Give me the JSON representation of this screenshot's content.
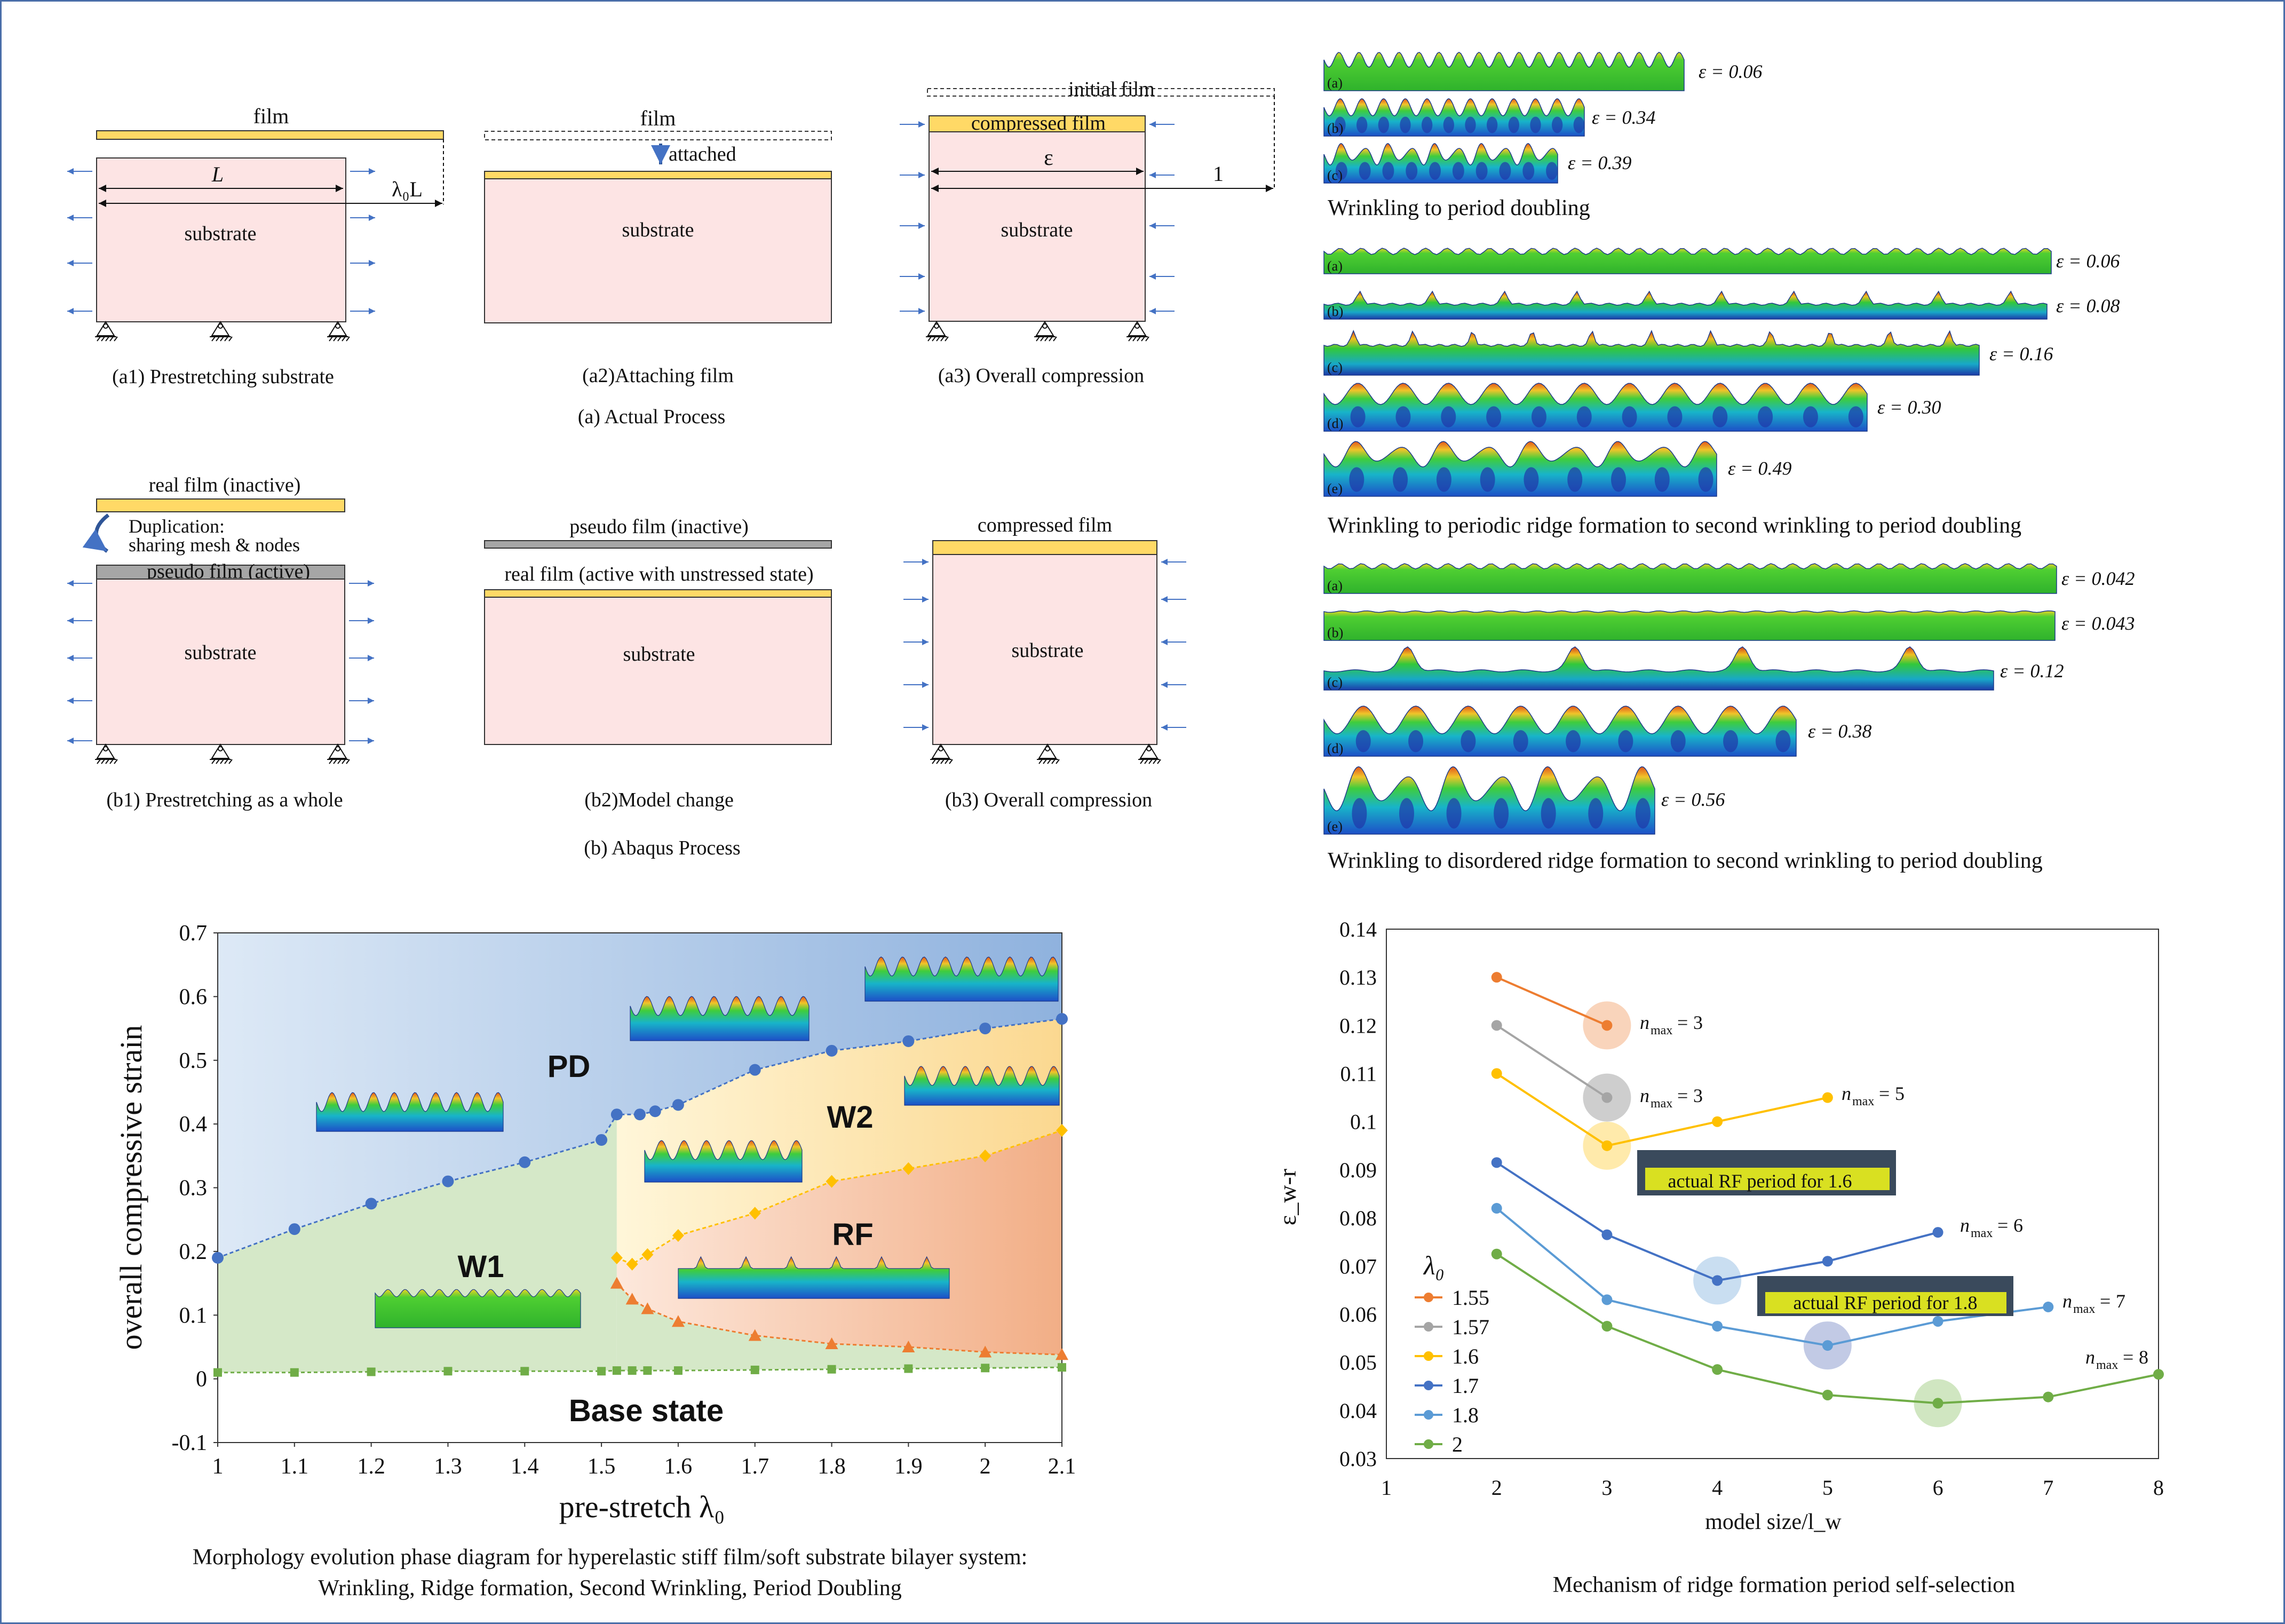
{
  "top_left": {
    "row_a": {
      "panels": [
        {
          "film": "film",
          "substrate": "substrate",
          "length": "L",
          "prestretch": "λ₀L",
          "caption": "(a1) Prestretching substrate"
        },
        {
          "film": "film",
          "attached": "attached",
          "substrate": "substrate",
          "caption": "(a2)Attaching film"
        },
        {
          "initial": "initial film",
          "compressed": "compressed film",
          "epsilon": "ε",
          "one": "1",
          "substrate": "substrate",
          "caption": "(a3) Overall compression"
        }
      ],
      "title": "(a) Actual Process"
    },
    "row_b": {
      "panels": [
        {
          "real": "real film (inactive)",
          "dup1": "Duplication:",
          "dup2": "sharing mesh & nodes",
          "pseudo": "pseudo  film (active)",
          "substrate": "substrate",
          "caption": "(b1) Prestretching as a whole"
        },
        {
          "pseudo": "pseudo  film (inactive)",
          "real": "real film (active with unstressed state)",
          "substrate": "substrate",
          "caption": "(b2)Model change"
        },
        {
          "compressed": "compressed film",
          "substrate": "substrate",
          "caption": "(b3) Overall compression"
        }
      ],
      "title": "(b) Abaqus Process"
    }
  },
  "top_right": {
    "groups": [
      {
        "title": "Wrinkling to period doubling",
        "strips": [
          {
            "label": "(a)",
            "eps": "ε = 0.06"
          },
          {
            "label": "(b)",
            "eps": "ε = 0.34"
          },
          {
            "label": "(c)",
            "eps": "ε = 0.39"
          }
        ]
      },
      {
        "title": "Wrinkling to periodic ridge formation to second wrinkling to period doubling",
        "strips": [
          {
            "label": "(a)",
            "eps": "ε = 0.06"
          },
          {
            "label": "(b)",
            "eps": "ε = 0.08"
          },
          {
            "label": "(c)",
            "eps": "ε = 0.16"
          },
          {
            "label": "(d)",
            "eps": "ε = 0.30"
          },
          {
            "label": "(e)",
            "eps": "ε = 0.49"
          }
        ]
      },
      {
        "title": "Wrinkling to disordered  ridge formation to second wrinkling to period doubling",
        "strips": [
          {
            "label": "(a)",
            "eps": "ε = 0.042"
          },
          {
            "label": "(b)",
            "eps": "ε = 0.043"
          },
          {
            "label": "(c)",
            "eps": "ε = 0.12"
          },
          {
            "label": "(d)",
            "eps": "ε = 0.38"
          },
          {
            "label": "(e)",
            "eps": "ε = 0.56"
          }
        ]
      }
    ]
  },
  "phase_diagram": {
    "caption_line1": "Morphology evolution phase diagram for hyperelastic stiff film/soft substrate bilayer system:",
    "caption_line2": "Wrinkling, Ridge formation, Second Wrinkling, Period Doubling",
    "regions": {
      "pd": "PD",
      "w2": "W2",
      "w1": "W1",
      "rf": "RF",
      "base": "Base state"
    }
  },
  "selection_chart": {
    "caption": "Mechanism of ridge formation period self-selection",
    "annotations": {
      "nmax_3a": "3",
      "nmax_3b": "3",
      "nmax_5": "5",
      "nmax_6": "6",
      "nmax_7": "7",
      "nmax_8": "8",
      "rf16": "actual RF period for 1.6",
      "rf18": "actual RF period for 1.8"
    },
    "legend_title": "λ₀"
  },
  "chart_data": [
    {
      "type": "scatter",
      "xlabel": "pre-stretch λ₀",
      "ylabel": "overall compressive strain",
      "xlim": [
        1,
        2.1
      ],
      "ylim": [
        -0.1,
        0.7
      ],
      "xticks": [
        "1",
        "1.1",
        "1.2",
        "1.3",
        "1.4",
        "1.5",
        "1.6",
        "1.7",
        "1.8",
        "1.9",
        "2",
        "2.1"
      ],
      "yticks": [
        "0.7",
        "0.6",
        "0.5",
        "0.4",
        "0.3",
        "0.2",
        "0.1",
        "0",
        "-0.1"
      ],
      "series": [
        {
          "color": "#4472c4",
          "marker": "circle",
          "x": [
            1.0,
            1.1,
            1.2,
            1.3,
            1.4,
            1.5,
            1.52,
            1.55,
            1.57,
            1.6,
            1.7,
            1.8,
            1.9,
            2.0,
            2.1
          ],
          "y": [
            0.19,
            0.235,
            0.275,
            0.31,
            0.34,
            0.375,
            0.415,
            0.415,
            0.42,
            0.43,
            0.485,
            0.515,
            0.53,
            0.55,
            0.565
          ]
        },
        {
          "color": "#ffc000",
          "marker": "diamond",
          "x": [
            1.52,
            1.54,
            1.56,
            1.6,
            1.7,
            1.8,
            1.9,
            2.0,
            2.1
          ],
          "y": [
            0.19,
            0.18,
            0.195,
            0.225,
            0.26,
            0.31,
            0.33,
            0.35,
            0.39
          ]
        },
        {
          "color": "#ed7d31",
          "marker": "triangle",
          "x": [
            1.52,
            1.54,
            1.56,
            1.6,
            1.7,
            1.8,
            1.9,
            2.0,
            2.1
          ],
          "y": [
            0.15,
            0.125,
            0.11,
            0.09,
            0.068,
            0.055,
            0.05,
            0.042,
            0.038
          ]
        },
        {
          "color": "#70ad47",
          "marker": "square",
          "x": [
            1.0,
            1.1,
            1.2,
            1.3,
            1.4,
            1.5,
            1.52,
            1.54,
            1.56,
            1.6,
            1.7,
            1.8,
            1.9,
            2.0,
            2.1
          ],
          "y": [
            0.01,
            0.01,
            0.011,
            0.012,
            0.012,
            0.012,
            0.013,
            0.013,
            0.013,
            0.013,
            0.014,
            0.015,
            0.016,
            0.017,
            0.018
          ]
        }
      ]
    },
    {
      "type": "line",
      "xlabel": "model size/l_w",
      "ylabel": "ε_w-r",
      "xlim": [
        1,
        8
      ],
      "ylim": [
        0.03,
        0.14
      ],
      "xticks": [
        "1",
        "2",
        "3",
        "4",
        "5",
        "6",
        "7",
        "8"
      ],
      "yticks": [
        "0.14",
        "0.13",
        "0.12",
        "0.11",
        "0.1",
        "0.09",
        "0.08",
        "0.07",
        "0.06",
        "0.05",
        "0.04",
        "0.03"
      ],
      "series": [
        {
          "name": "1.55",
          "color": "#ed7d31",
          "x": [
            2,
            3
          ],
          "y": [
            0.13,
            0.12
          ]
        },
        {
          "name": "1.57",
          "color": "#a5a5a5",
          "x": [
            2,
            3
          ],
          "y": [
            0.12,
            0.105
          ]
        },
        {
          "name": "1.6",
          "color": "#ffc000",
          "x": [
            2,
            3,
            4,
            5
          ],
          "y": [
            0.11,
            0.095,
            0.1,
            0.105
          ]
        },
        {
          "name": "1.7",
          "color": "#4472c4",
          "x": [
            2,
            3,
            4,
            5,
            6
          ],
          "y": [
            0.0915,
            0.0765,
            0.067,
            0.071,
            0.077
          ]
        },
        {
          "name": "1.8",
          "color": "#5b9bd5",
          "x": [
            2,
            3,
            4,
            5,
            6,
            7
          ],
          "y": [
            0.082,
            0.063,
            0.0575,
            0.0535,
            0.0585,
            0.0615
          ]
        },
        {
          "name": "2",
          "color": "#70ad47",
          "x": [
            2,
            3,
            4,
            5,
            6,
            7,
            8
          ],
          "y": [
            0.0725,
            0.0575,
            0.0485,
            0.0432,
            0.0415,
            0.0428,
            0.0475
          ]
        }
      ]
    }
  ]
}
